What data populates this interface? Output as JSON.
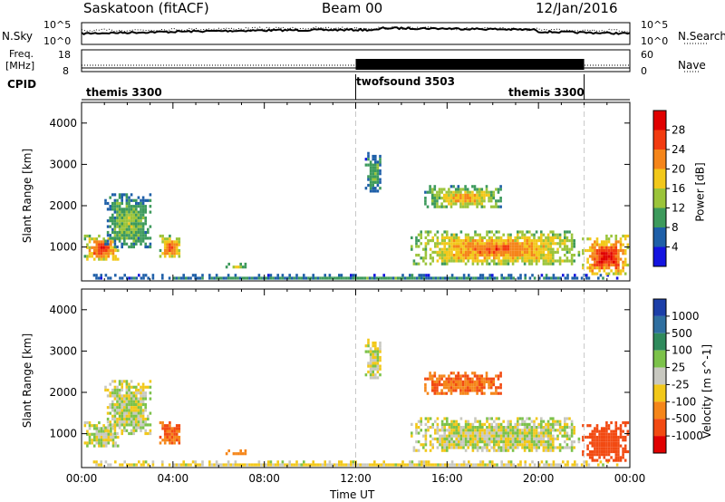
{
  "header": {
    "station": "Saskatoon (fitACF)",
    "beam": "Beam 00",
    "date": "12/Jan/2016"
  },
  "top_panels": {
    "nsky_label": "N.Sky",
    "nsky_ticks": [
      "10^5",
      "10^0"
    ],
    "nsearch_label": "N.Search",
    "nsearch_ticks": [
      "10^5",
      "10^0"
    ],
    "freq_label": "Freq.",
    "freq_unit": "[MHz]",
    "freq_ticks": [
      "18",
      "8"
    ],
    "nave_label": "Nave",
    "nave_ticks": [
      "60",
      "0"
    ],
    "cpid_label": "CPID",
    "cpid_segments": [
      {
        "name": "themis 3300",
        "start_h": 0,
        "end_h": 12
      },
      {
        "name": "twofsound 3503",
        "start_h": 12,
        "end_h": 22
      },
      {
        "name": "themis 3300",
        "start_h": 22,
        "end_h": 24
      }
    ]
  },
  "power_panel": {
    "ylabel": "Slant Range [km]",
    "cbar_label": "Power [dB]",
    "cbar_ticks": [
      "28",
      "24",
      "20",
      "16",
      "12",
      "8",
      "4"
    ],
    "cbar_colors": [
      "#e00000",
      "#f23b10",
      "#f5851a",
      "#f2c81a",
      "#9bc43a",
      "#3d9a5c",
      "#1e5fa8",
      "#1414e0"
    ]
  },
  "velocity_panel": {
    "ylabel": "Slant Range [km]",
    "cbar_label": "Velocity [m s^-1]",
    "cbar_ticks": [
      "1000",
      "500",
      "100",
      "25",
      "-25",
      "-100",
      "-500",
      "-1000"
    ],
    "cbar_colors": [
      "#1c3fa8",
      "#2f6fa0",
      "#2f8a5c",
      "#7cc24a",
      "#c8c8c0",
      "#f2c81a",
      "#f5861a",
      "#f24a12",
      "#e00000"
    ]
  },
  "time_axis": {
    "label": "Time UT",
    "ticks": [
      "00:00",
      "04:00",
      "08:00",
      "12:00",
      "16:00",
      "20:00",
      "00:00"
    ]
  },
  "chart_data": {
    "type": "heatmap",
    "title": "Saskatoon (fitACF) Beam 00 12/Jan/2016",
    "xlabel": "Time UT",
    "x_ticks": [
      "00:00",
      "04:00",
      "08:00",
      "12:00",
      "16:00",
      "20:00",
      "00:00"
    ],
    "xlim_hours": [
      0,
      24
    ],
    "ylabel": "Slant Range [km]",
    "ylim": [
      180,
      4500
    ],
    "y_ticks": [
      1000,
      2000,
      3000,
      4000
    ],
    "frequency_mhz": {
      "before_12h": 11,
      "after_12h": 11
    },
    "nave": {
      "before_12h": 10,
      "after_12h_min": 10,
      "after_12h_max": 60
    },
    "power_db_range": [
      0,
      30
    ],
    "velocity_range": [
      -1000,
      1000
    ],
    "echo_regions": [
      {
        "t0": 0.1,
        "t1": 1.7,
        "r0": 600,
        "r1": 1300,
        "power_db": 26,
        "velocity": 0
      },
      {
        "t0": 1.0,
        "t1": 3.1,
        "r0": 900,
        "r1": 2300,
        "power_db": 12,
        "velocity": 0
      },
      {
        "t0": 3.4,
        "t1": 4.4,
        "r0": 700,
        "r1": 1300,
        "power_db": 24,
        "velocity": -300
      },
      {
        "t0": 6.3,
        "t1": 7.3,
        "r0": 450,
        "r1": 620,
        "power_db": 14,
        "velocity": -100
      },
      {
        "t0": 0.5,
        "t1": 23.8,
        "r0": 180,
        "r1": 350,
        "power_db": 8,
        "velocity": -20
      },
      {
        "t0": 12.4,
        "t1": 13.2,
        "r0": 2300,
        "r1": 3300,
        "power_db": 10,
        "velocity": 0
      },
      {
        "t0": 14.4,
        "t1": 21.9,
        "r0": 500,
        "r1": 1400,
        "power_db": 22,
        "velocity": 0
      },
      {
        "t0": 15.0,
        "t1": 18.5,
        "r0": 1900,
        "r1": 2500,
        "power_db": 18,
        "velocity": -300
      },
      {
        "t0": 21.9,
        "t1": 24.0,
        "r0": 300,
        "r1": 1300,
        "power_db": 28,
        "velocity": -400
      }
    ]
  }
}
